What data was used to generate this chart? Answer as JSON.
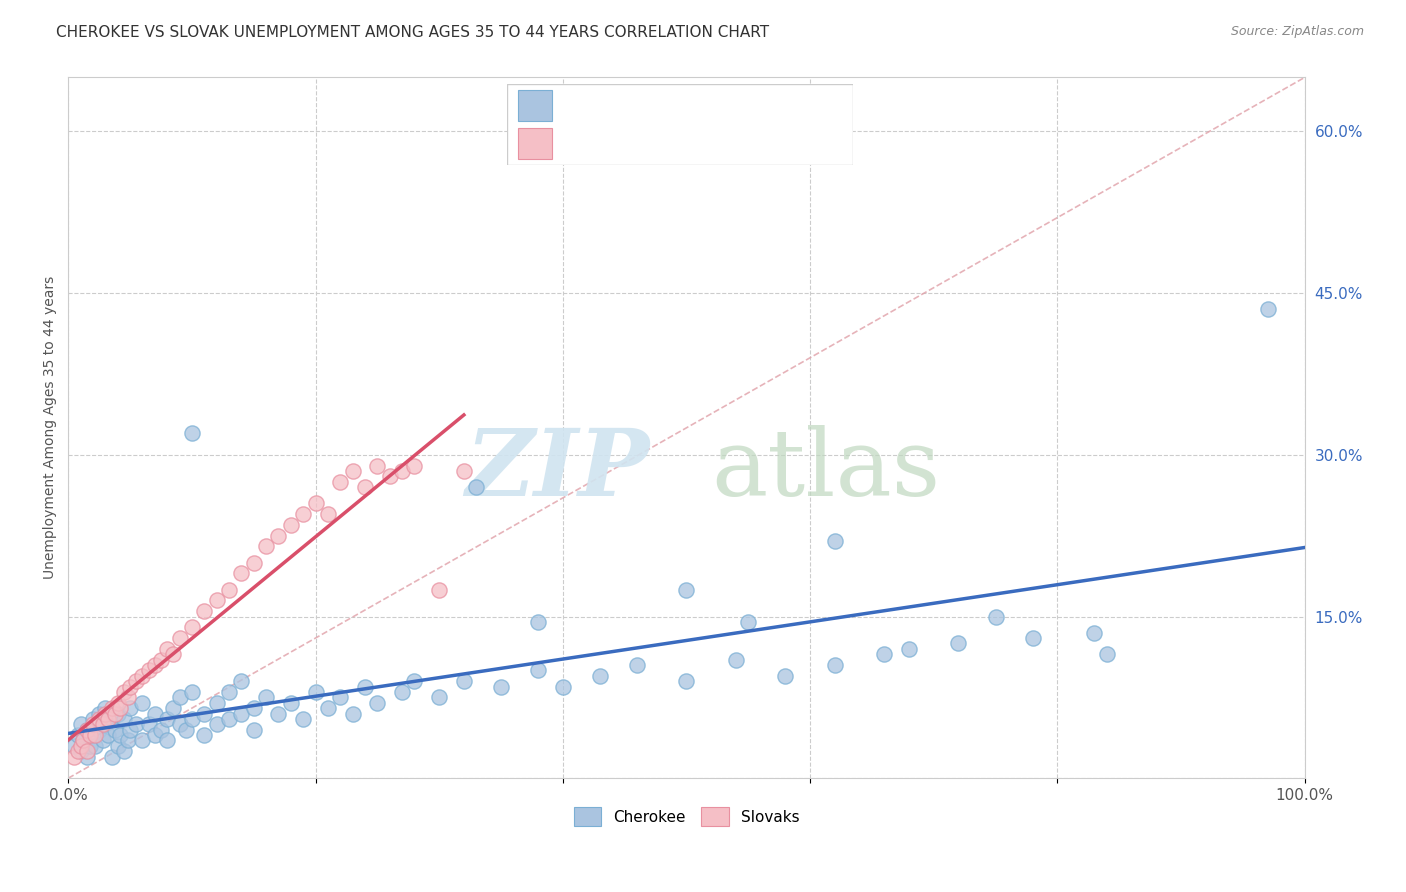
{
  "title": "CHEROKEE VS SLOVAK UNEMPLOYMENT AMONG AGES 35 TO 44 YEARS CORRELATION CHART",
  "source": "Source: ZipAtlas.com",
  "ylabel": "Unemployment Among Ages 35 to 44 years",
  "xlim": [
    0,
    1.0
  ],
  "ylim": [
    0,
    0.65
  ],
  "xtick_vals": [
    0.0,
    0.2,
    0.4,
    0.6,
    0.8,
    1.0
  ],
  "xtick_labels": [
    "0.0%",
    "",
    "",
    "",
    "",
    "100.0%"
  ],
  "ytick_vals": [
    0.0,
    0.15,
    0.3,
    0.45,
    0.6
  ],
  "ytick_labels": [
    "",
    "15.0%",
    "30.0%",
    "45.0%",
    "60.0%"
  ],
  "cherokee_color": "#aac4e0",
  "cherokee_edge": "#7bafd4",
  "slovak_color": "#f5bfc6",
  "slovak_edge": "#e890a0",
  "cherokee_line_color": "#3a6bbf",
  "slovak_line_color": "#d94f6a",
  "diagonal_color": "#e0a0a8",
  "legend_text_color": "#3a6bbf",
  "title_color": "#333333",
  "source_color": "#888888",
  "ylabel_color": "#555555",
  "tick_color": "#555555",
  "grid_color": "#cccccc",
  "cherokee_x": [
    0.005,
    0.008,
    0.01,
    0.01,
    0.012,
    0.015,
    0.015,
    0.018,
    0.02,
    0.02,
    0.022,
    0.025,
    0.025,
    0.028,
    0.03,
    0.03,
    0.032,
    0.035,
    0.035,
    0.038,
    0.04,
    0.04,
    0.042,
    0.045,
    0.045,
    0.048,
    0.05,
    0.05,
    0.055,
    0.06,
    0.06,
    0.065,
    0.07,
    0.07,
    0.075,
    0.08,
    0.08,
    0.085,
    0.09,
    0.09,
    0.095,
    0.1,
    0.1,
    0.11,
    0.11,
    0.12,
    0.12,
    0.13,
    0.13,
    0.14,
    0.14,
    0.15,
    0.15,
    0.16,
    0.17,
    0.18,
    0.19,
    0.2,
    0.21,
    0.22,
    0.23,
    0.24,
    0.25,
    0.27,
    0.28,
    0.3,
    0.32,
    0.35,
    0.38,
    0.4,
    0.43,
    0.46,
    0.5,
    0.54,
    0.58,
    0.62,
    0.66,
    0.72,
    0.78,
    0.84,
    0.33,
    0.38,
    0.5,
    0.55,
    0.62,
    0.68,
    0.75,
    0.83,
    0.97,
    0.1
  ],
  "cherokee_y": [
    0.03,
    0.04,
    0.025,
    0.05,
    0.035,
    0.045,
    0.02,
    0.03,
    0.04,
    0.055,
    0.03,
    0.045,
    0.06,
    0.035,
    0.05,
    0.065,
    0.04,
    0.055,
    0.02,
    0.045,
    0.03,
    0.06,
    0.04,
    0.025,
    0.055,
    0.035,
    0.045,
    0.065,
    0.05,
    0.035,
    0.07,
    0.05,
    0.04,
    0.06,
    0.045,
    0.055,
    0.035,
    0.065,
    0.05,
    0.075,
    0.045,
    0.055,
    0.08,
    0.06,
    0.04,
    0.07,
    0.05,
    0.055,
    0.08,
    0.06,
    0.09,
    0.065,
    0.045,
    0.075,
    0.06,
    0.07,
    0.055,
    0.08,
    0.065,
    0.075,
    0.06,
    0.085,
    0.07,
    0.08,
    0.09,
    0.075,
    0.09,
    0.085,
    0.1,
    0.085,
    0.095,
    0.105,
    0.09,
    0.11,
    0.095,
    0.105,
    0.115,
    0.125,
    0.13,
    0.115,
    0.27,
    0.145,
    0.175,
    0.145,
    0.22,
    0.12,
    0.15,
    0.135,
    0.435,
    0.32
  ],
  "slovak_x": [
    0.005,
    0.008,
    0.01,
    0.012,
    0.015,
    0.015,
    0.018,
    0.02,
    0.022,
    0.025,
    0.028,
    0.03,
    0.032,
    0.035,
    0.038,
    0.04,
    0.042,
    0.045,
    0.048,
    0.05,
    0.055,
    0.06,
    0.065,
    0.07,
    0.075,
    0.08,
    0.085,
    0.09,
    0.1,
    0.11,
    0.12,
    0.13,
    0.14,
    0.15,
    0.16,
    0.17,
    0.18,
    0.19,
    0.2,
    0.21,
    0.22,
    0.23,
    0.24,
    0.25,
    0.26,
    0.27,
    0.28,
    0.3,
    0.32
  ],
  "slovak_y": [
    0.02,
    0.025,
    0.03,
    0.035,
    0.025,
    0.045,
    0.04,
    0.05,
    0.04,
    0.055,
    0.05,
    0.06,
    0.055,
    0.065,
    0.06,
    0.07,
    0.065,
    0.08,
    0.075,
    0.085,
    0.09,
    0.095,
    0.1,
    0.105,
    0.11,
    0.12,
    0.115,
    0.13,
    0.14,
    0.155,
    0.165,
    0.175,
    0.19,
    0.2,
    0.215,
    0.225,
    0.235,
    0.245,
    0.255,
    0.245,
    0.275,
    0.285,
    0.27,
    0.29,
    0.28,
    0.285,
    0.29,
    0.175,
    0.285
  ]
}
